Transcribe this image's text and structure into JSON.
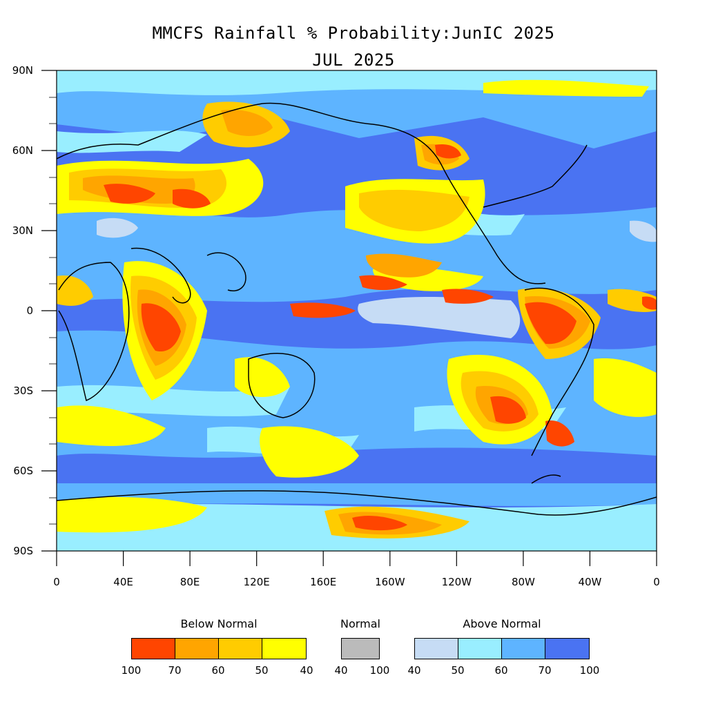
{
  "title_line1": "MMCFS Rainfall % Probability:JunIC 2025",
  "title_line2": "JUL 2025",
  "map": {
    "lat_labels": [
      "90N",
      "60N",
      "30N",
      "0",
      "30S",
      "60S",
      "90S"
    ],
    "lon_labels": [
      "0",
      "40E",
      "80E",
      "120E",
      "160E",
      "160W",
      "120W",
      "80W",
      "40W",
      "0"
    ],
    "background_color": "#4a73f2"
  },
  "legend": {
    "below": {
      "title": "Below Normal",
      "colors": [
        "#ff4500",
        "#ffa500",
        "#ffcc00",
        "#ffff00"
      ],
      "ticks": [
        "100",
        "70",
        "60",
        "50",
        "40"
      ]
    },
    "normal": {
      "title": "Normal",
      "colors": [
        "#bbbbbb"
      ],
      "ticks": [
        "40",
        "100"
      ]
    },
    "above": {
      "title": "Above Normal",
      "colors": [
        "#c6dcf5",
        "#99eeff",
        "#5eb4ff",
        "#4a73f2"
      ],
      "ticks": [
        "40",
        "50",
        "60",
        "70",
        "100"
      ]
    }
  }
}
